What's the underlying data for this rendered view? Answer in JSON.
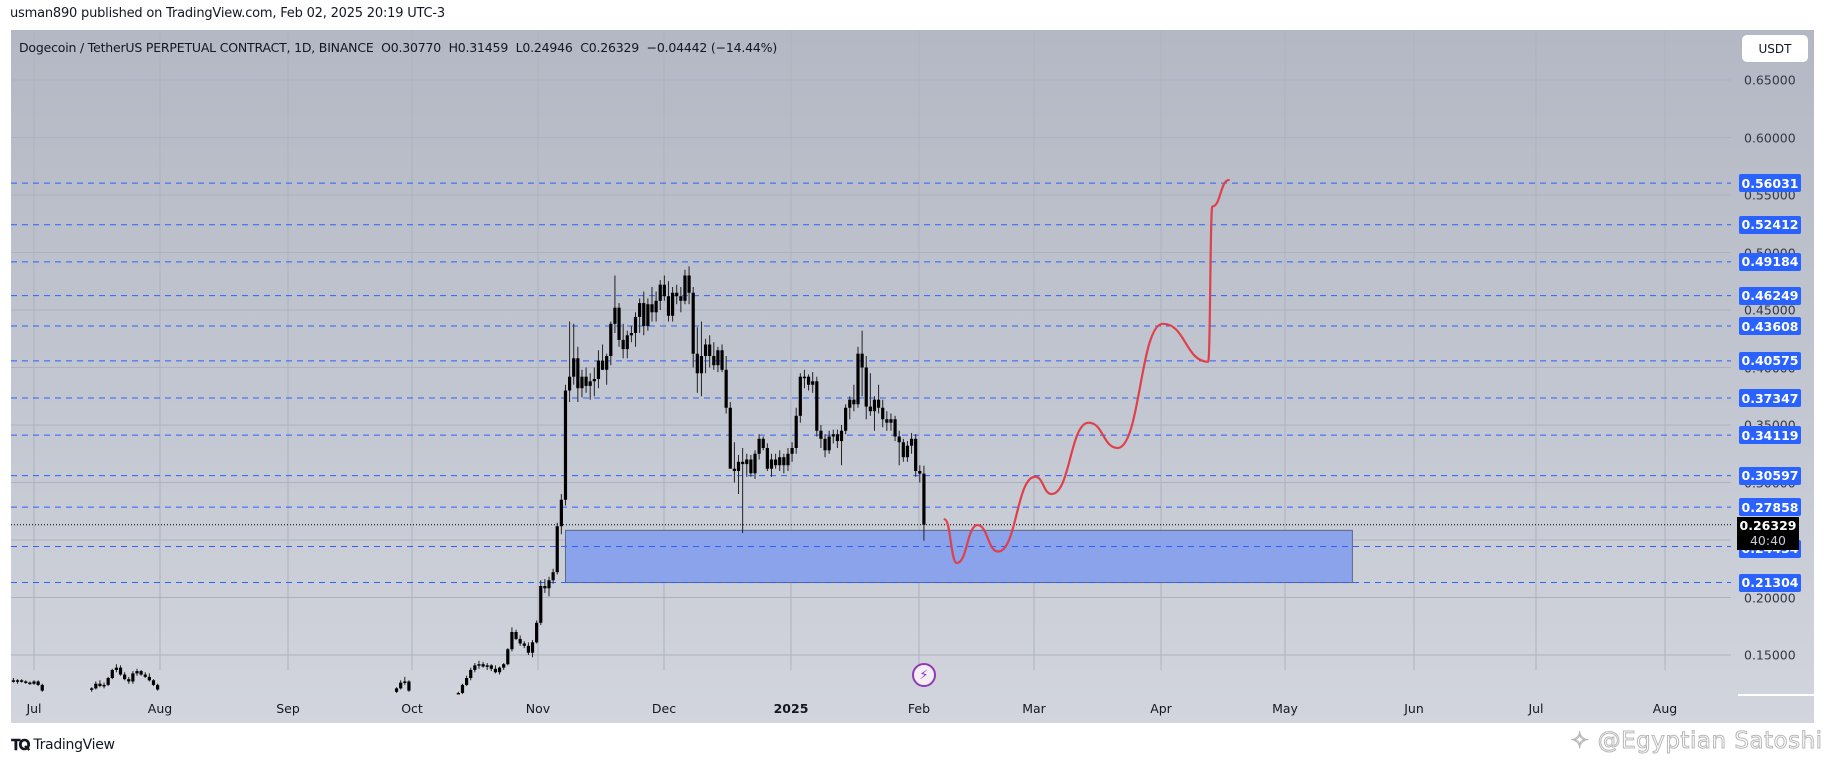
{
  "header": {
    "published": "usman890 published on TradingView.com, Feb 02, 2025 20:19 UTC-3"
  },
  "legend": {
    "text": "Dogecoin / TetherUS PERPETUAL CONTRACT, 1D, BINANCE  O0.30770  H0.31459  L0.24946  C0.26329  −0.04442 (−14.44%)"
  },
  "currency_button": "USDT",
  "price_axis": {
    "ticks": [
      "0.65000",
      "0.60000",
      "0.15000"
    ],
    "current_price": "0.26329",
    "countdown": "40:40"
  },
  "time_axis": [
    "Jul",
    "Aug",
    "Sep",
    "Oct",
    "Nov",
    "Dec",
    "2025",
    "Feb",
    "Mar",
    "Apr",
    "May",
    "Jun",
    "Jul",
    "Aug"
  ],
  "footer": {
    "brand": "TradingView",
    "watermark": "@Egyptian Satoshi"
  },
  "colors": {
    "level_line": "#2962ff",
    "box_fill": "#8aa3ea",
    "projection": "#e0404a",
    "candle": "#000000",
    "bolt": "#8e3ab5"
  },
  "chart_data": {
    "type": "candlestick",
    "title": "Dogecoin / TetherUS PERPETUAL CONTRACT, 1D, BINANCE",
    "xlabel": "",
    "ylabel": "USDT",
    "ylim": [
      0.13,
      0.68
    ],
    "grid": true,
    "time_ticks": [
      "Jul",
      "Aug",
      "Sep",
      "Oct",
      "Nov",
      "Dec",
      "2025",
      "Feb",
      "Mar",
      "Apr",
      "May",
      "Jun",
      "Jul",
      "Aug"
    ],
    "y_ticks": [
      0.65,
      0.6,
      0.55,
      0.5,
      0.45,
      0.4,
      0.35,
      0.3,
      0.25,
      0.2,
      0.15
    ],
    "last_bar": {
      "open": 0.3077,
      "high": 0.31459,
      "low": 0.24946,
      "close": 0.26329,
      "change": -0.04442,
      "change_pct": -14.44
    },
    "horizontal_levels": [
      0.56031,
      0.52412,
      0.49184,
      0.46249,
      0.43608,
      0.40575,
      0.37347,
      0.34119,
      0.30597,
      0.27858,
      0.24434,
      0.21304
    ],
    "support_zone": {
      "top": 0.2584,
      "bottom": 0.213,
      "start": "2024-11-07",
      "end": "2025-05-17"
    },
    "projection_path": [
      [
        "2025-02-07",
        0.268
      ],
      [
        "2025-02-10",
        0.23
      ],
      [
        "2025-02-15",
        0.263
      ],
      [
        "2025-02-20",
        0.24
      ],
      [
        "2025-03-01",
        0.305
      ],
      [
        "2025-03-05",
        0.29
      ],
      [
        "2025-03-14",
        0.352
      ],
      [
        "2025-03-21",
        0.33
      ],
      [
        "2025-04-01",
        0.438
      ],
      [
        "2025-04-12",
        0.405
      ],
      [
        "2025-04-13",
        0.54
      ],
      [
        "2025-04-17",
        0.563
      ]
    ],
    "candles": [
      [
        "2024-06-26",
        0.128,
        0.13,
        0.126,
        0.127
      ],
      [
        "2024-06-27",
        0.127,
        0.129,
        0.125,
        0.128
      ],
      [
        "2024-06-28",
        0.128,
        0.129,
        0.126,
        0.127
      ],
      [
        "2024-06-29",
        0.127,
        0.128,
        0.125,
        0.126
      ],
      [
        "2024-06-30",
        0.126,
        0.127,
        0.124,
        0.125
      ],
      [
        "2024-07-01",
        0.125,
        0.128,
        0.124,
        0.127
      ],
      [
        "2024-07-02",
        0.127,
        0.128,
        0.123,
        0.124
      ],
      [
        "2024-07-03",
        0.124,
        0.125,
        0.118,
        0.119
      ],
      [
        "2024-07-15",
        0.12,
        0.122,
        0.118,
        0.121
      ],
      [
        "2024-07-16",
        0.121,
        0.127,
        0.12,
        0.125
      ],
      [
        "2024-07-17",
        0.125,
        0.128,
        0.122,
        0.123
      ],
      [
        "2024-07-18",
        0.123,
        0.126,
        0.121,
        0.124
      ],
      [
        "2024-07-19",
        0.124,
        0.131,
        0.123,
        0.13
      ],
      [
        "2024-07-20",
        0.13,
        0.138,
        0.129,
        0.137
      ],
      [
        "2024-07-21",
        0.137,
        0.142,
        0.135,
        0.139
      ],
      [
        "2024-07-22",
        0.139,
        0.141,
        0.132,
        0.133
      ],
      [
        "2024-07-23",
        0.133,
        0.135,
        0.128,
        0.129
      ],
      [
        "2024-07-24",
        0.129,
        0.131,
        0.125,
        0.127
      ],
      [
        "2024-07-25",
        0.127,
        0.136,
        0.125,
        0.134
      ],
      [
        "2024-07-26",
        0.134,
        0.138,
        0.132,
        0.136
      ],
      [
        "2024-07-27",
        0.136,
        0.137,
        0.132,
        0.133
      ],
      [
        "2024-07-28",
        0.133,
        0.135,
        0.13,
        0.131
      ],
      [
        "2024-07-29",
        0.131,
        0.134,
        0.127,
        0.128
      ],
      [
        "2024-07-30",
        0.128,
        0.129,
        0.123,
        0.124
      ],
      [
        "2024-07-31",
        0.124,
        0.125,
        0.119,
        0.12
      ],
      [
        "2024-09-27",
        0.118,
        0.122,
        0.117,
        0.121
      ],
      [
        "2024-09-28",
        0.121,
        0.128,
        0.12,
        0.126
      ],
      [
        "2024-09-29",
        0.126,
        0.131,
        0.124,
        0.127
      ],
      [
        "2024-09-30",
        0.127,
        0.128,
        0.118,
        0.119
      ],
      [
        "2024-10-12",
        0.117,
        0.118,
        0.116,
        0.117
      ],
      [
        "2024-10-13",
        0.117,
        0.125,
        0.116,
        0.124
      ],
      [
        "2024-10-14",
        0.124,
        0.132,
        0.123,
        0.13
      ],
      [
        "2024-10-15",
        0.13,
        0.139,
        0.128,
        0.137
      ],
      [
        "2024-10-16",
        0.137,
        0.143,
        0.135,
        0.141
      ],
      [
        "2024-10-17",
        0.141,
        0.145,
        0.138,
        0.142
      ],
      [
        "2024-10-18",
        0.142,
        0.144,
        0.139,
        0.14
      ],
      [
        "2024-10-19",
        0.14,
        0.143,
        0.137,
        0.141
      ],
      [
        "2024-10-20",
        0.141,
        0.142,
        0.136,
        0.138
      ],
      [
        "2024-10-21",
        0.138,
        0.141,
        0.134,
        0.135
      ],
      [
        "2024-10-22",
        0.135,
        0.14,
        0.133,
        0.139
      ],
      [
        "2024-10-23",
        0.139,
        0.143,
        0.137,
        0.142
      ],
      [
        "2024-10-24",
        0.142,
        0.156,
        0.141,
        0.155
      ],
      [
        "2024-10-25",
        0.155,
        0.174,
        0.153,
        0.17
      ],
      [
        "2024-10-26",
        0.17,
        0.172,
        0.163,
        0.164
      ],
      [
        "2024-10-27",
        0.164,
        0.167,
        0.158,
        0.16
      ],
      [
        "2024-10-28",
        0.16,
        0.162,
        0.156,
        0.158
      ],
      [
        "2024-10-29",
        0.158,
        0.161,
        0.15,
        0.152
      ],
      [
        "2024-10-30",
        0.152,
        0.163,
        0.148,
        0.161
      ],
      [
        "2024-10-31",
        0.161,
        0.18,
        0.16,
        0.178
      ],
      [
        "2024-11-01",
        0.178,
        0.215,
        0.176,
        0.21
      ],
      [
        "2024-11-02",
        0.21,
        0.216,
        0.204,
        0.208
      ],
      [
        "2024-11-03",
        0.208,
        0.218,
        0.201,
        0.215
      ],
      [
        "2024-11-04",
        0.215,
        0.225,
        0.212,
        0.222
      ],
      [
        "2024-11-05",
        0.222,
        0.265,
        0.22,
        0.262
      ],
      [
        "2024-11-06",
        0.262,
        0.29,
        0.255,
        0.285
      ],
      [
        "2024-11-07",
        0.285,
        0.385,
        0.28,
        0.38
      ],
      [
        "2024-11-08",
        0.38,
        0.44,
        0.37,
        0.392
      ],
      [
        "2024-11-09",
        0.392,
        0.438,
        0.385,
        0.408
      ],
      [
        "2024-11-10",
        0.408,
        0.418,
        0.37,
        0.382
      ],
      [
        "2024-11-11",
        0.382,
        0.398,
        0.374,
        0.392
      ],
      [
        "2024-11-12",
        0.392,
        0.4,
        0.378,
        0.384
      ],
      [
        "2024-11-13",
        0.384,
        0.395,
        0.372,
        0.388
      ],
      [
        "2024-11-14",
        0.388,
        0.4,
        0.375,
        0.39
      ],
      [
        "2024-11-15",
        0.39,
        0.415,
        0.382,
        0.406
      ],
      [
        "2024-11-16",
        0.406,
        0.42,
        0.398,
        0.398
      ],
      [
        "2024-11-17",
        0.398,
        0.412,
        0.385,
        0.41
      ],
      [
        "2024-11-18",
        0.41,
        0.44,
        0.402,
        0.438
      ],
      [
        "2024-11-19",
        0.438,
        0.48,
        0.43,
        0.452
      ],
      [
        "2024-11-20",
        0.452,
        0.456,
        0.418,
        0.424
      ],
      [
        "2024-11-21",
        0.424,
        0.438,
        0.408,
        0.416
      ],
      [
        "2024-11-22",
        0.416,
        0.432,
        0.408,
        0.428
      ],
      [
        "2024-11-23",
        0.428,
        0.436,
        0.422,
        0.43
      ],
      [
        "2024-11-24",
        0.43,
        0.448,
        0.418,
        0.444
      ],
      [
        "2024-11-25",
        0.444,
        0.46,
        0.43,
        0.456
      ],
      [
        "2024-11-26",
        0.456,
        0.466,
        0.428,
        0.436
      ],
      [
        "2024-11-27",
        0.436,
        0.46,
        0.432,
        0.455
      ],
      [
        "2024-11-28",
        0.455,
        0.47,
        0.44,
        0.448
      ],
      [
        "2024-11-29",
        0.448,
        0.466,
        0.44,
        0.458
      ],
      [
        "2024-11-30",
        0.458,
        0.476,
        0.45,
        0.472
      ],
      [
        "2024-12-01",
        0.472,
        0.48,
        0.458,
        0.462
      ],
      [
        "2024-12-02",
        0.462,
        0.475,
        0.44,
        0.445
      ],
      [
        "2024-12-03",
        0.445,
        0.47,
        0.44,
        0.465
      ],
      [
        "2024-12-04",
        0.465,
        0.472,
        0.455,
        0.462
      ],
      [
        "2024-12-05",
        0.462,
        0.47,
        0.448,
        0.458
      ],
      [
        "2024-12-06",
        0.458,
        0.485,
        0.455,
        0.48
      ],
      [
        "2024-12-07",
        0.48,
        0.488,
        0.455,
        0.465
      ],
      [
        "2024-12-08",
        0.465,
        0.47,
        0.4,
        0.412
      ],
      [
        "2024-12-09",
        0.412,
        0.435,
        0.378,
        0.395
      ],
      [
        "2024-12-10",
        0.395,
        0.44,
        0.375,
        0.41
      ],
      [
        "2024-12-11",
        0.41,
        0.425,
        0.395,
        0.42
      ],
      [
        "2024-12-12",
        0.42,
        0.428,
        0.4,
        0.41
      ],
      [
        "2024-12-13",
        0.41,
        0.422,
        0.398,
        0.402
      ],
      [
        "2024-12-14",
        0.402,
        0.418,
        0.396,
        0.415
      ],
      [
        "2024-12-15",
        0.415,
        0.42,
        0.396,
        0.398
      ],
      [
        "2024-12-16",
        0.398,
        0.41,
        0.36,
        0.365
      ],
      [
        "2024-12-17",
        0.365,
        0.37,
        0.33,
        0.312
      ],
      [
        "2024-12-18",
        0.312,
        0.335,
        0.3,
        0.31
      ],
      [
        "2024-12-19",
        0.31,
        0.324,
        0.29,
        0.318
      ],
      [
        "2024-12-20",
        0.318,
        0.33,
        0.256,
        0.316
      ],
      [
        "2024-12-21",
        0.316,
        0.325,
        0.305,
        0.32
      ],
      [
        "2024-12-22",
        0.32,
        0.324,
        0.305,
        0.308
      ],
      [
        "2024-12-23",
        0.308,
        0.328,
        0.303,
        0.325
      ],
      [
        "2024-12-24",
        0.325,
        0.342,
        0.32,
        0.338
      ],
      [
        "2024-12-25",
        0.338,
        0.34,
        0.328,
        0.33
      ],
      [
        "2024-12-26",
        0.33,
        0.334,
        0.31,
        0.312
      ],
      [
        "2024-12-27",
        0.312,
        0.325,
        0.305,
        0.32
      ],
      [
        "2024-12-28",
        0.32,
        0.325,
        0.312,
        0.315
      ],
      [
        "2024-12-29",
        0.315,
        0.328,
        0.31,
        0.322
      ],
      [
        "2024-12-30",
        0.322,
        0.325,
        0.308,
        0.315
      ],
      [
        "2024-12-31",
        0.315,
        0.33,
        0.31,
        0.325
      ],
      [
        "2025-01-01",
        0.325,
        0.335,
        0.318,
        0.33
      ],
      [
        "2025-01-02",
        0.33,
        0.365,
        0.325,
        0.358
      ],
      [
        "2025-01-03",
        0.358,
        0.395,
        0.352,
        0.392
      ],
      [
        "2025-01-04",
        0.392,
        0.398,
        0.382,
        0.392
      ],
      [
        "2025-01-05",
        0.392,
        0.394,
        0.38,
        0.385
      ],
      [
        "2025-01-06",
        0.385,
        0.396,
        0.378,
        0.388
      ],
      [
        "2025-01-07",
        0.388,
        0.392,
        0.34,
        0.345
      ],
      [
        "2025-01-08",
        0.345,
        0.35,
        0.33,
        0.338
      ],
      [
        "2025-01-09",
        0.338,
        0.342,
        0.322,
        0.328
      ],
      [
        "2025-01-10",
        0.328,
        0.345,
        0.325,
        0.34
      ],
      [
        "2025-01-11",
        0.34,
        0.346,
        0.334,
        0.342
      ],
      [
        "2025-01-12",
        0.342,
        0.346,
        0.33,
        0.336
      ],
      [
        "2025-01-13",
        0.336,
        0.35,
        0.315,
        0.345
      ],
      [
        "2025-01-14",
        0.345,
        0.368,
        0.342,
        0.365
      ],
      [
        "2025-01-15",
        0.365,
        0.375,
        0.355,
        0.372
      ],
      [
        "2025-01-16",
        0.372,
        0.385,
        0.362,
        0.368
      ],
      [
        "2025-01-17",
        0.368,
        0.418,
        0.365,
        0.412
      ],
      [
        "2025-01-18",
        0.412,
        0.432,
        0.375,
        0.4
      ],
      [
        "2025-01-19",
        0.4,
        0.41,
        0.355,
        0.366
      ],
      [
        "2025-01-20",
        0.366,
        0.395,
        0.358,
        0.362
      ],
      [
        "2025-01-21",
        0.362,
        0.375,
        0.345,
        0.372
      ],
      [
        "2025-01-22",
        0.372,
        0.385,
        0.36,
        0.365
      ],
      [
        "2025-01-23",
        0.365,
        0.372,
        0.348,
        0.355
      ],
      [
        "2025-01-24",
        0.355,
        0.362,
        0.345,
        0.352
      ],
      [
        "2025-01-25",
        0.352,
        0.36,
        0.345,
        0.355
      ],
      [
        "2025-01-26",
        0.355,
        0.358,
        0.336,
        0.34
      ],
      [
        "2025-01-27",
        0.34,
        0.345,
        0.315,
        0.335
      ],
      [
        "2025-01-28",
        0.335,
        0.338,
        0.318,
        0.322
      ],
      [
        "2025-01-29",
        0.322,
        0.336,
        0.318,
        0.332
      ],
      [
        "2025-01-30",
        0.332,
        0.343,
        0.325,
        0.338
      ],
      [
        "2025-01-31",
        0.338,
        0.342,
        0.305,
        0.31
      ],
      [
        "2025-02-01",
        0.31,
        0.315,
        0.3,
        0.3077
      ],
      [
        "2025-02-02",
        0.3077,
        0.31459,
        0.24946,
        0.26329
      ]
    ]
  }
}
